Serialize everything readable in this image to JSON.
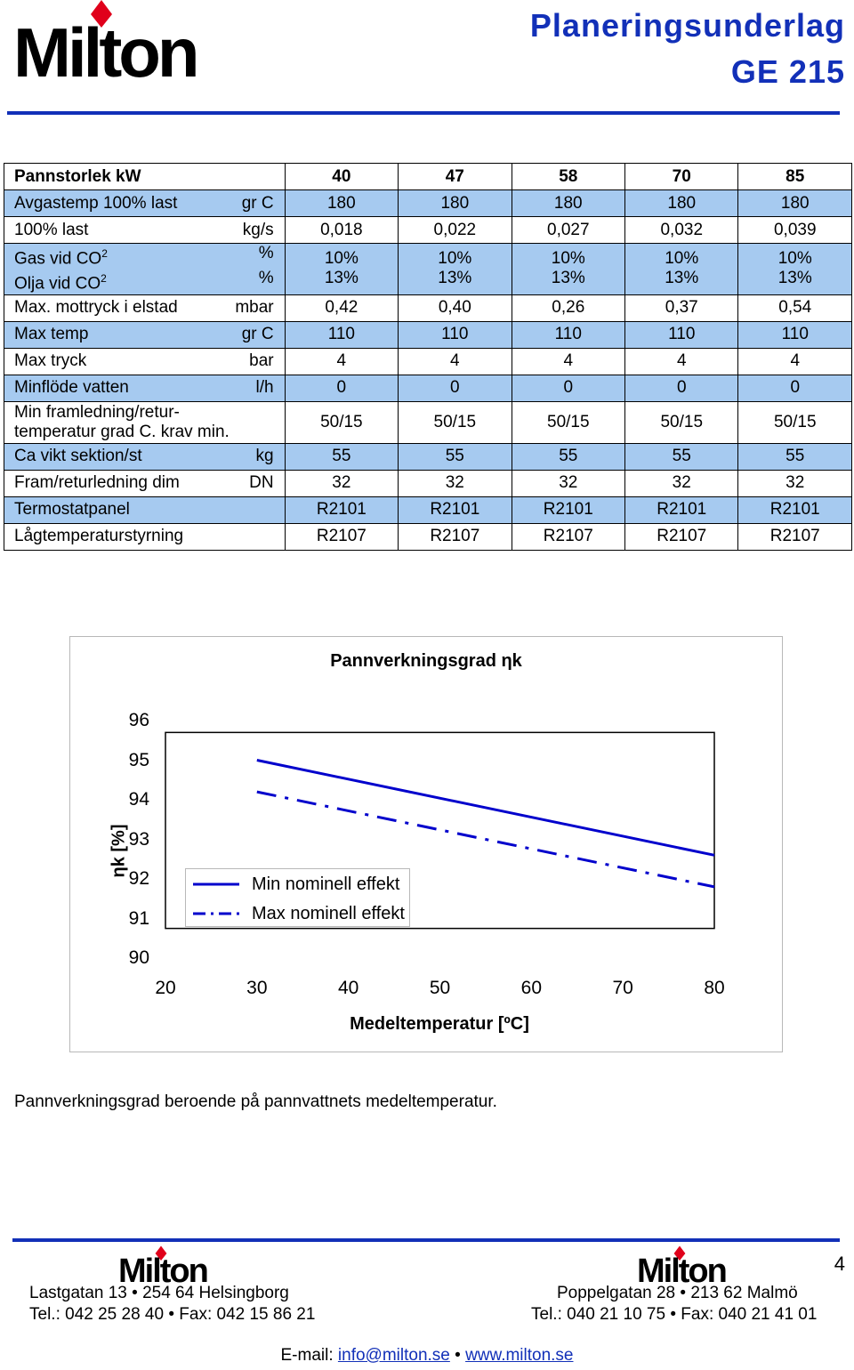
{
  "header": {
    "logo_text": "Milton",
    "title": "Planeringsunderlag",
    "model": "GE 215"
  },
  "table": {
    "header_label": "Pannstorlek kW",
    "columns": [
      "40",
      "47",
      "58",
      "70",
      "85"
    ],
    "rows": [
      {
        "label": "Avgastemp 100% last",
        "unit": "gr C",
        "values": [
          "180",
          "180",
          "180",
          "180",
          "180"
        ]
      },
      {
        "label": "100% last",
        "unit": "kg/s",
        "values": [
          "0,018",
          "0,022",
          "0,027",
          "0,032",
          "0,039"
        ]
      },
      {
        "label": "Gas vid CO",
        "unit": "%",
        "label2": "Olja vid CO",
        "unit2": "%",
        "sup": "2",
        "values": [
          "10%",
          "10%",
          "10%",
          "10%",
          "10%"
        ],
        "values2": [
          "13%",
          "13%",
          "13%",
          "13%",
          "13%"
        ]
      },
      {
        "label": "Max. mottryck i elstad",
        "unit": "mbar",
        "values": [
          "0,42",
          "0,40",
          "0,26",
          "0,37",
          "0,54"
        ]
      },
      {
        "label": "Max temp",
        "unit": "gr C",
        "values": [
          "110",
          "110",
          "110",
          "110",
          "110"
        ]
      },
      {
        "label": "Max tryck",
        "unit": "bar",
        "values": [
          "4",
          "4",
          "4",
          "4",
          "4"
        ]
      },
      {
        "label": "Minflöde vatten",
        "unit": "l/h",
        "values": [
          "0",
          "0",
          "0",
          "0",
          "0"
        ]
      },
      {
        "label": "Min framledning/retur-",
        "label2": "temperatur grad C. krav min.",
        "unit": "",
        "values": [
          "50/15",
          "50/15",
          "50/15",
          "50/15",
          "50/15"
        ]
      },
      {
        "label": "Ca vikt sektion/st",
        "unit": "kg",
        "values": [
          "55",
          "55",
          "55",
          "55",
          "55"
        ]
      },
      {
        "label": "Fram/returledning dim",
        "unit": "DN",
        "values": [
          "32",
          "32",
          "32",
          "32",
          "32"
        ]
      },
      {
        "label": "Termostatpanel",
        "unit": "",
        "values": [
          "R2101",
          "R2101",
          "R2101",
          "R2101",
          "R2101"
        ]
      },
      {
        "label": "Lågtemperaturstyrning",
        "unit": "",
        "values": [
          "R2107",
          "R2107",
          "R2107",
          "R2107",
          "R2107"
        ]
      }
    ]
  },
  "chart_data": {
    "type": "line",
    "title": "Pannverkningsgrad ηk",
    "xlabel": "Medeltemperatur [ºC]",
    "ylabel": "ηk [%]",
    "xlim": [
      20,
      80
    ],
    "ylim": [
      90,
      96
    ],
    "x_ticks": [
      "20",
      "30",
      "40",
      "50",
      "60",
      "70",
      "80"
    ],
    "y_ticks": [
      "96",
      "95",
      "94",
      "93",
      "92",
      "91",
      "90"
    ],
    "grid": false,
    "legend_position": "bottom-left",
    "series": [
      {
        "name": "Min nominell effekt",
        "style": "solid",
        "color": "#0000cc",
        "x": [
          30,
          80
        ],
        "y": [
          95.0,
          92.6
        ]
      },
      {
        "name": "Max nominell effekt",
        "style": "dash-dot",
        "color": "#0000cc",
        "x": [
          30,
          80
        ],
        "y": [
          94.2,
          91.8
        ]
      }
    ]
  },
  "caption": "Pannverkningsgrad beroende på pannvattnets medeltemperatur.",
  "footer": {
    "page_number": "4",
    "left_logo": "Milton",
    "left_address": "Lastgatan 13 • 254 64 Helsingborg",
    "left_phone": "Tel.: 042 25 28 40 • Fax: 042 15 86 21",
    "right_logo": "Milton",
    "right_address": "Poppelgatan 28 • 213 62 Malmö",
    "right_phone": "Tel.: 040 21 10 75 • Fax: 040 21 41 01",
    "email_label": "E-mail:",
    "email": "info@milton.se",
    "separator": "•",
    "website": "www.milton.se"
  }
}
